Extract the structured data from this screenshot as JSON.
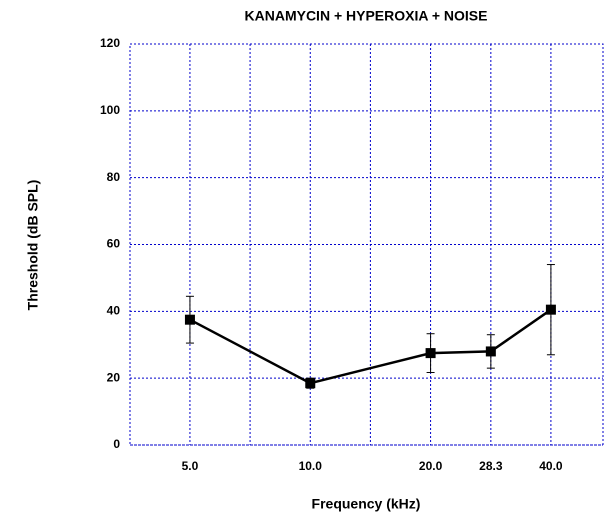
{
  "chart_data": {
    "type": "line",
    "title": "KANAMYCIN + HYPEROXIA + NOISE",
    "x_label": "Frequency (kHz)",
    "y_label": "Threshold (dB SPL)",
    "x": [
      5.0,
      10.0,
      20.0,
      28.3,
      40.0
    ],
    "series": [
      {
        "color": "#000000",
        "values": [
          37.5,
          18.5,
          27.5,
          28,
          40.5
        ],
        "errors": [
          7,
          1.5,
          5.8,
          5,
          13.5
        ]
      }
    ],
    "xscale": "log",
    "xlim": [
      3.54,
      54
    ],
    "xticks": [
      {
        "value": 5.0,
        "label": "5.0"
      },
      {
        "value": 10.0,
        "label": "10.0"
      },
      {
        "value": 20.0,
        "label": "20.0"
      },
      {
        "value": 28.3,
        "label": "28.3"
      },
      {
        "value": 40.0,
        "label": "40.0"
      }
    ],
    "xminorticks": [
      7.07,
      14.14
    ],
    "ylim": [
      0,
      120
    ],
    "yticks": [
      0,
      20,
      40,
      60,
      80,
      100,
      120
    ],
    "grid": true,
    "grid_color": "#0000cc"
  }
}
